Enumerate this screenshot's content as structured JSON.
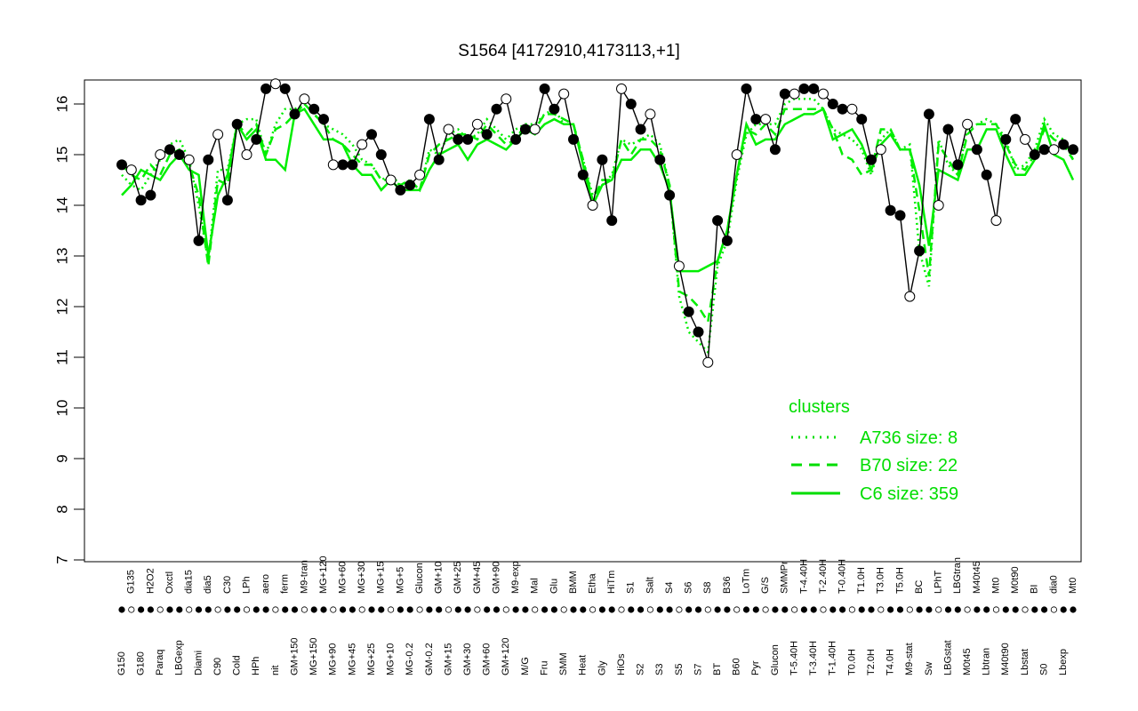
{
  "chart_data": {
    "type": "line",
    "title": "S1564 [4172910,4173113,+1]",
    "xlabel": "",
    "ylabel": "",
    "ylim": [
      7,
      16.5
    ],
    "yticks": [
      7,
      8,
      9,
      10,
      11,
      12,
      13,
      14,
      15,
      16
    ],
    "grid": false,
    "legend": {
      "title": "clusters",
      "placement": "right",
      "entries": [
        {
          "label": "A736 size: 8",
          "style": "dotted"
        },
        {
          "label": "B70 size: 22",
          "style": "dashed"
        },
        {
          "label": "C6 size: 359",
          "style": "solid"
        }
      ]
    },
    "category_labels": [
      "G150",
      "G135",
      "G180",
      "H2O2",
      "Paraq",
      "Oxctl",
      "LBGexp",
      "dia15",
      "Diami",
      "dia5",
      "C90",
      "C30",
      "Cold",
      "LPh",
      "HPh",
      "aero",
      "nit",
      "ferm",
      "GM+150",
      "M9-tran",
      "MG+150",
      "MG+120",
      "MG+90",
      "MG+60",
      "MG+45",
      "MG+30",
      "MG+25",
      "MG+15",
      "MG+10",
      "MG+5",
      "MG-0.2",
      "Glucon",
      "GM-0.2",
      "GM+10",
      "GM+15",
      "GM+25",
      "GM+30",
      "GM+45",
      "GM+60",
      "GM+90",
      "GM+120",
      "M9-exp",
      "M/G",
      "Mal",
      "Fru",
      "Glu",
      "SMM",
      "BMM",
      "Heat",
      "Etha",
      "Gly",
      "HiTm",
      "HiOs",
      "S1",
      "S2",
      "Salt",
      "S3",
      "S4",
      "S5",
      "S6",
      "S7",
      "S8",
      "BT",
      "B36",
      "B60",
      "LoTm",
      "Pyr",
      "G/S",
      "Glucon",
      "SMMPr",
      "T-5.40H",
      "T-4.40H",
      "T-3.40H",
      "T-2.40H",
      "T-1.40H",
      "T-0.40H",
      "T0.0H",
      "T1.0H",
      "T2.0H",
      "T3.0H",
      "T4.0H",
      "T5.0H",
      "M9-stat",
      "BC",
      "Sw",
      "LPhT",
      "LBGstat",
      "LBGtran",
      "M0t45",
      "M40t45",
      "Lbtran",
      "Mt0",
      "M40t90",
      "M0t90",
      "Lbstat",
      "BI",
      "S0",
      "dia0",
      "Lbexp",
      "Mt0"
    ],
    "series": [
      {
        "name": "",
        "values": [
          14.2,
          14.4,
          14.7,
          14.6,
          14.5,
          14.8,
          15.0,
          14.7,
          14.6,
          13.0,
          14.2,
          14.6,
          15.6,
          15.3,
          15.5,
          14.9,
          14.9,
          14.7,
          15.8,
          15.9,
          15.6,
          15.3,
          15.3,
          15.2,
          14.8,
          14.6,
          14.6,
          14.3,
          14.5,
          14.3,
          14.3,
          14.3,
          14.7,
          15.0,
          15.1,
          15.2,
          14.9,
          15.2,
          15.3,
          15.2,
          15.1,
          15.3,
          15.5,
          15.4,
          15.6,
          15.7,
          15.6,
          15.6,
          14.8,
          14.0,
          14.4,
          14.5,
          14.9,
          14.9,
          15.1,
          15.1,
          14.8,
          14.3,
          12.7,
          12.7,
          12.7,
          12.8,
          12.9,
          13.5,
          14.6,
          15.6,
          15.2,
          15.3,
          15.3,
          15.6,
          15.7,
          15.8,
          15.8,
          15.9,
          15.3,
          15.4,
          15.5,
          15.2,
          14.7,
          15.2,
          15.4,
          15.1,
          15.1,
          14.4,
          13.2,
          14.7,
          14.6,
          14.5,
          15.1,
          15.1,
          15.5,
          15.5,
          15.0,
          14.6,
          14.6,
          14.9,
          15.6,
          15.0,
          14.9,
          14.5
        ]
      },
      {
        "name": "",
        "values": [
          14.8,
          14.6,
          14.5,
          14.8,
          14.6,
          15.0,
          15.1,
          14.8,
          14.2,
          12.8,
          14.5,
          14.4,
          15.6,
          15.4,
          15.6,
          15.0,
          15.5,
          15.6,
          15.8,
          16.0,
          15.8,
          15.6,
          15.3,
          15.2,
          15.0,
          14.8,
          14.8,
          14.5,
          14.5,
          14.4,
          14.5,
          14.3,
          15.0,
          15.2,
          15.3,
          15.4,
          15.4,
          15.3,
          15.6,
          15.4,
          15.2,
          15.3,
          15.6,
          15.5,
          15.8,
          15.8,
          15.7,
          15.6,
          14.9,
          14.1,
          14.5,
          14.5,
          15.3,
          15.0,
          15.3,
          15.3,
          15.1,
          14.4,
          12.3,
          12.2,
          12.0,
          11.7,
          12.9,
          13.5,
          14.6,
          15.5,
          15.4,
          15.6,
          15.4,
          15.9,
          15.9,
          15.9,
          15.9,
          15.9,
          15.5,
          15.0,
          14.9,
          14.6,
          14.7,
          15.5,
          15.5,
          15.1,
          15.1,
          13.9,
          12.6,
          15.2,
          14.9,
          14.6,
          15.4,
          15.6,
          15.6,
          15.6,
          15.2,
          14.8,
          14.7,
          15.0,
          15.5,
          15.3,
          15.2,
          14.9
        ]
      },
      {
        "name": "",
        "values": [
          14.6,
          14.4,
          14.3,
          14.6,
          14.9,
          15.2,
          15.3,
          14.9,
          14.0,
          12.9,
          14.7,
          14.7,
          15.6,
          15.7,
          15.7,
          15.0,
          15.6,
          15.9,
          15.9,
          16.0,
          15.8,
          15.6,
          15.5,
          15.4,
          15.2,
          14.9,
          14.8,
          14.5,
          14.6,
          14.4,
          14.5,
          14.3,
          15.1,
          15.0,
          15.4,
          15.5,
          15.3,
          15.4,
          15.7,
          15.5,
          15.3,
          15.5,
          15.6,
          15.6,
          15.8,
          15.9,
          15.6,
          15.6,
          14.9,
          14.2,
          14.4,
          14.6,
          15.3,
          15.2,
          15.3,
          15.4,
          15.2,
          14.4,
          12.2,
          11.5,
          11.3,
          11.1,
          12.8,
          13.3,
          14.5,
          15.4,
          15.6,
          15.6,
          15.6,
          16.0,
          16.1,
          16.1,
          16.1,
          15.9,
          15.5,
          15.4,
          15.3,
          15.1,
          14.6,
          15.3,
          15.5,
          15.1,
          15.2,
          13.1,
          12.4,
          15.3,
          14.8,
          14.6,
          15.5,
          15.6,
          15.7,
          15.6,
          15.3,
          14.7,
          14.8,
          15.1,
          15.7,
          15.4,
          15.3,
          14.9
        ]
      },
      {
        "name": "",
        "values": [
          14.8,
          14.7,
          14.1,
          14.2,
          15.0,
          15.1,
          15.0,
          14.9,
          13.3,
          14.9,
          15.4,
          14.1,
          15.6,
          15.0,
          15.3,
          16.3,
          16.4,
          16.3,
          15.8,
          16.1,
          15.9,
          15.7,
          14.8,
          14.8,
          14.8,
          15.2,
          15.4,
          15.0,
          14.5,
          14.3,
          14.4,
          14.6,
          15.7,
          14.9,
          15.5,
          15.3,
          15.3,
          15.6,
          15.4,
          15.9,
          16.1,
          15.3,
          15.5,
          15.5,
          16.3,
          15.9,
          16.2,
          15.3,
          14.6,
          14.0,
          14.9,
          13.7,
          16.3,
          16.0,
          15.5,
          15.8,
          14.9,
          14.2,
          12.8,
          11.9,
          11.5,
          10.9,
          13.7,
          13.3,
          15.0,
          16.3,
          15.7,
          15.7,
          15.1,
          16.2,
          16.2,
          16.3,
          16.3,
          16.2,
          16.0,
          15.9,
          15.9,
          15.7,
          14.9,
          15.1,
          13.9,
          13.8,
          12.2,
          13.1,
          15.8,
          14.0,
          15.5,
          14.8,
          15.6,
          15.1,
          14.6,
          13.7,
          15.3,
          15.7,
          15.3,
          15.0,
          15.1,
          15.1,
          15.2,
          15.1
        ]
      }
    ]
  }
}
